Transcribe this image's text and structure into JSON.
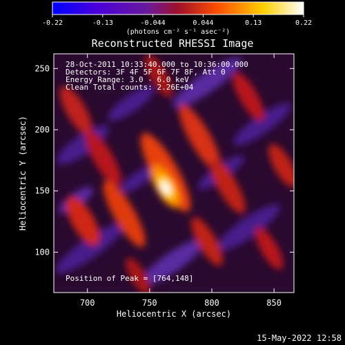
{
  "colorbar": {
    "ticks": [
      "-0.22",
      "-0.13",
      "-0.044",
      "0.044",
      "0.13",
      "0.22"
    ],
    "unit_label": "(photons cm⁻² s⁻¹ asec⁻²)",
    "colors": [
      "#0000ff",
      "#4b00d9",
      "#7a1aa0",
      "#aa1a2d",
      "#ff6a00",
      "#ffe000",
      "#ffffff"
    ]
  },
  "title": "Reconstructed RHESSI Image",
  "info": {
    "time_range": "28-Oct-2011 10:33:40.000 to 10:36:00.000",
    "detectors": "Detectors: 3F 4F 5F 6F 7F 8F, Att 0",
    "energy": "Energy Range: 3.0 - 6.0 keV",
    "clean": "Clean    Total counts: 2.26E+04",
    "peak": "Position of Peak = [764,148]"
  },
  "axes": {
    "xlabel": "Heliocentric X (arcsec)",
    "ylabel": "Heliocentric Y (arcsec)",
    "xticks": [
      700,
      750,
      800,
      850
    ],
    "yticks": [
      100,
      150,
      200,
      250
    ],
    "xrange": [
      673,
      866
    ],
    "yrange": [
      67,
      262
    ]
  },
  "footer_date": "15-May-2022 12:58"
}
